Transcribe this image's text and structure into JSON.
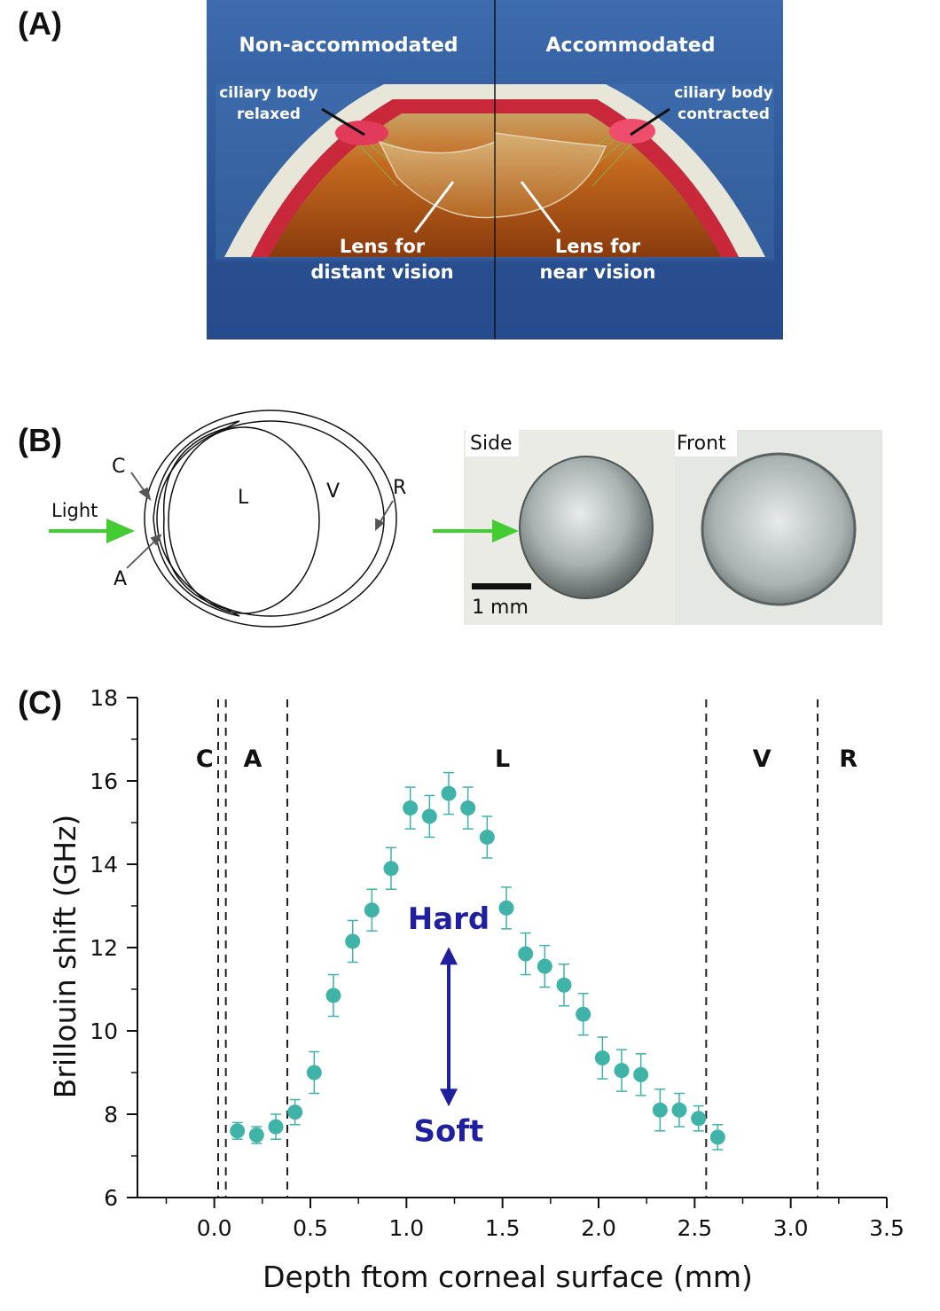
{
  "panels": {
    "a": {
      "label": "(A)",
      "left_title": "Non-accommodated",
      "right_title": "Accommodated",
      "left_ciliary_line1": "ciliary body",
      "left_ciliary_line2": "relaxed",
      "right_ciliary_line1": "ciliary body",
      "right_ciliary_line2": "contracted",
      "left_lens_line1": "Lens for",
      "left_lens_line2": "distant vision",
      "right_lens_line1": "Lens for",
      "right_lens_line2": "near vision"
    },
    "b": {
      "label": "(B)",
      "light": "Light",
      "c": "C",
      "a": "A",
      "l": "L",
      "v": "V",
      "r": "R",
      "side": "Side",
      "front": "Front",
      "scale": "1 mm"
    },
    "c": {
      "label": "(C)"
    }
  },
  "colors": {
    "panel_a_bg": "#2f5a9a",
    "light_arrow": "#44cc33",
    "marker": "#3fb3a8",
    "hard_soft": "#1f1fa0"
  },
  "chart_data": {
    "type": "scatter",
    "xlabel": "Depth ftom corneal surface (mm)",
    "ylabel": "Brillouin shift (GHz)",
    "xlim": [
      -0.4,
      3.5
    ],
    "ylim": [
      6,
      18
    ],
    "x_ticks": [
      0.0,
      0.5,
      1.0,
      1.5,
      2.0,
      2.5,
      3.0,
      3.5
    ],
    "x_tick_labels": [
      "0.0",
      "0.5",
      "1.0",
      "1.5",
      "2.0",
      "2.5",
      "3.0",
      "3.5"
    ],
    "y_ticks": [
      6,
      8,
      10,
      12,
      14,
      16,
      18
    ],
    "y_tick_labels": [
      "6",
      "8",
      "10",
      "12",
      "14",
      "16",
      "18"
    ],
    "region_boundaries": [
      0.02,
      0.06,
      0.38,
      2.56,
      3.14
    ],
    "regions": [
      {
        "label": "C",
        "x": -0.05
      },
      {
        "label": "A",
        "x": 0.2
      },
      {
        "label": "L",
        "x": 1.5
      },
      {
        "label": "V",
        "x": 2.85
      },
      {
        "label": "R",
        "x": 3.3
      }
    ],
    "annotations": {
      "hard": "Hard",
      "soft": "Soft"
    },
    "series": [
      {
        "x": [
          0.12,
          0.22,
          0.32,
          0.42,
          0.52,
          0.62,
          0.72,
          0.82,
          0.92,
          1.02,
          1.12,
          1.22,
          1.32,
          1.42,
          1.52,
          1.62,
          1.72,
          1.82,
          1.92,
          2.02,
          2.12,
          2.22,
          2.32,
          2.42,
          2.52,
          2.62
        ],
        "y": [
          7.6,
          7.5,
          7.7,
          8.05,
          9.0,
          10.85,
          12.15,
          12.9,
          13.9,
          15.35,
          15.15,
          15.7,
          15.35,
          14.65,
          12.95,
          11.85,
          11.55,
          11.1,
          10.4,
          9.35,
          9.05,
          8.95,
          8.1,
          8.1,
          7.9,
          7.45
        ],
        "err": [
          0.2,
          0.2,
          0.3,
          0.3,
          0.5,
          0.5,
          0.5,
          0.5,
          0.5,
          0.5,
          0.5,
          0.5,
          0.5,
          0.5,
          0.5,
          0.5,
          0.5,
          0.5,
          0.5,
          0.5,
          0.5,
          0.5,
          0.5,
          0.4,
          0.3,
          0.3
        ]
      }
    ]
  }
}
